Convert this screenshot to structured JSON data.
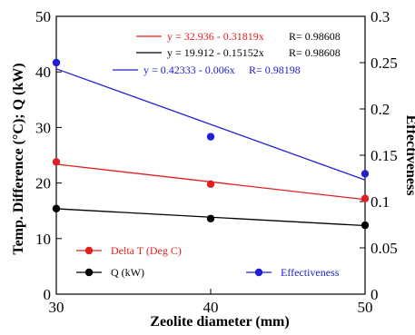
{
  "chart_data": {
    "type": "scatter",
    "x": [
      30,
      40,
      50
    ],
    "xlabel": "Zeolite diameter (mm)",
    "ylabel_left": "Temp. Difference (°C); Q (kW)",
    "ylabel_right": "Effectiveness",
    "xlim": [
      30,
      50
    ],
    "ylim_left": [
      0,
      50
    ],
    "ylim_right": [
      0,
      0.3
    ],
    "x_ticks": [
      "30",
      "40",
      "50"
    ],
    "y_left_ticks": [
      "0",
      "10",
      "20",
      "30",
      "40",
      "50"
    ],
    "y_right_ticks": [
      "0",
      "0.05",
      "0.1",
      "0.15",
      "0.2",
      "0.25",
      "0.3"
    ],
    "grid": false,
    "series": [
      {
        "name": "Delta T (Deg C)",
        "axis": "left",
        "color": "#e02020",
        "values": [
          23.8,
          19.8,
          17.2
        ],
        "fit_label": "y = 32.936 - 0.31819x",
        "r_label": "R= 0.98608",
        "fit": {
          "intercept": 32.936,
          "slope": -0.31819
        }
      },
      {
        "name": "Q (kW)",
        "axis": "left",
        "color": "#000000",
        "values": [
          15.4,
          13.6,
          12.4
        ],
        "fit_label": "y = 19.912 - 0.15152x",
        "r_label": "R= 0.98608",
        "fit": {
          "intercept": 19.912,
          "slope": -0.15152
        }
      },
      {
        "name": "Effectiveness",
        "axis": "right",
        "color": "#2020d0",
        "values": [
          0.25,
          0.17,
          0.13
        ],
        "fit_label": "y = 0.42333 - 0.006x",
        "r_label": "R= 0.98198",
        "fit": {
          "intercept": 0.42333,
          "slope": -0.006
        }
      }
    ]
  }
}
